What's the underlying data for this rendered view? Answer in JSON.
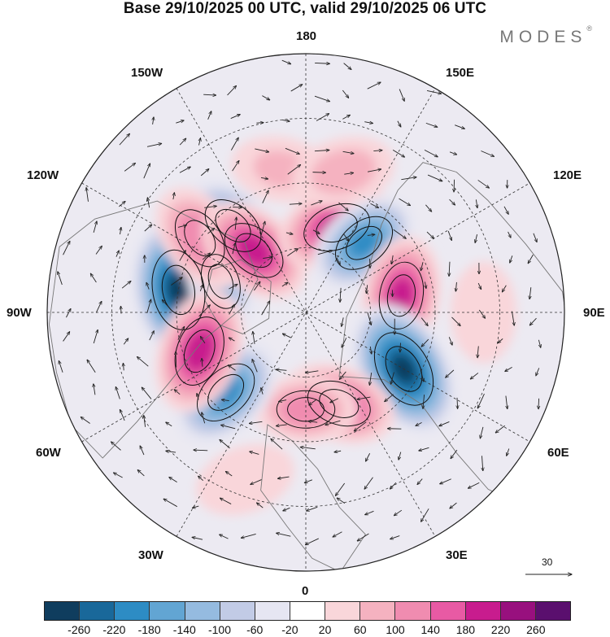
{
  "title": "Base 29/10/2025 00 UTC, valid 29/10/2025 06 UTC",
  "brand": {
    "name": "MODES",
    "mark": "®"
  },
  "longitude_labels": {
    "top": "180",
    "bottom": "0",
    "left": "90W",
    "right": "90E",
    "upper_left": "150W",
    "upper_right": "150E",
    "mid_upper_left": "120W",
    "mid_upper_right": "120E",
    "lower_left": "60W",
    "lower_right": "60E",
    "bottom_left": "30W",
    "bottom_right": "30E"
  },
  "vector_scale": {
    "value": "30"
  },
  "colorbar": {
    "colors": [
      "#0f3d5e",
      "#19689a",
      "#2d8cc4",
      "#62a5d3",
      "#95bbe0",
      "#c2cbe6",
      "#e6e6f2",
      "#ffffff",
      "#f9d6da",
      "#f5b2c0",
      "#f08cb0",
      "#e85aa4",
      "#c81c8e",
      "#98107e",
      "#5a0f6e"
    ],
    "tick_labels": [
      "-260",
      "-220",
      "-180",
      "-140",
      "-100",
      "-60",
      "-20",
      "20",
      "60",
      "100",
      "140",
      "180",
      "220",
      "260"
    ]
  },
  "anomaly_centers": [
    {
      "lon_label": "100W",
      "lat": 50,
      "value": -260
    },
    {
      "lon_label": "140W",
      "lat": 55,
      "value": -150
    },
    {
      "lon_label": "110W",
      "lat": 62,
      "value": -110
    },
    {
      "lon_label": "125W",
      "lat": 50,
      "value": 130
    },
    {
      "lon_label": "140W",
      "lat": 65,
      "value": 200
    },
    {
      "lon_label": "160E",
      "lat": 62,
      "value": 200
    },
    {
      "lon_label": "140E",
      "lat": 62,
      "value": -180
    },
    {
      "lon_label": "100E",
      "lat": 60,
      "value": 190
    },
    {
      "lon_label": "60E",
      "lat": 55,
      "value": -260
    },
    {
      "lon_label": "20E",
      "lat": 60,
      "value": 170
    },
    {
      "lon_label": "0",
      "lat": 60,
      "value": 120
    },
    {
      "lon_label": "45W",
      "lat": 55,
      "value": -180
    },
    {
      "lon_label": "70W",
      "lat": 55,
      "value": 200
    },
    {
      "lon_label": "170W",
      "lat": 45,
      "value": 60
    },
    {
      "lon_label": "165E",
      "lat": 45,
      "value": 80
    },
    {
      "lon_label": "90E",
      "lat": 35,
      "value": 40
    },
    {
      "lon_label": "20W",
      "lat": 35,
      "value": 40
    }
  ]
}
